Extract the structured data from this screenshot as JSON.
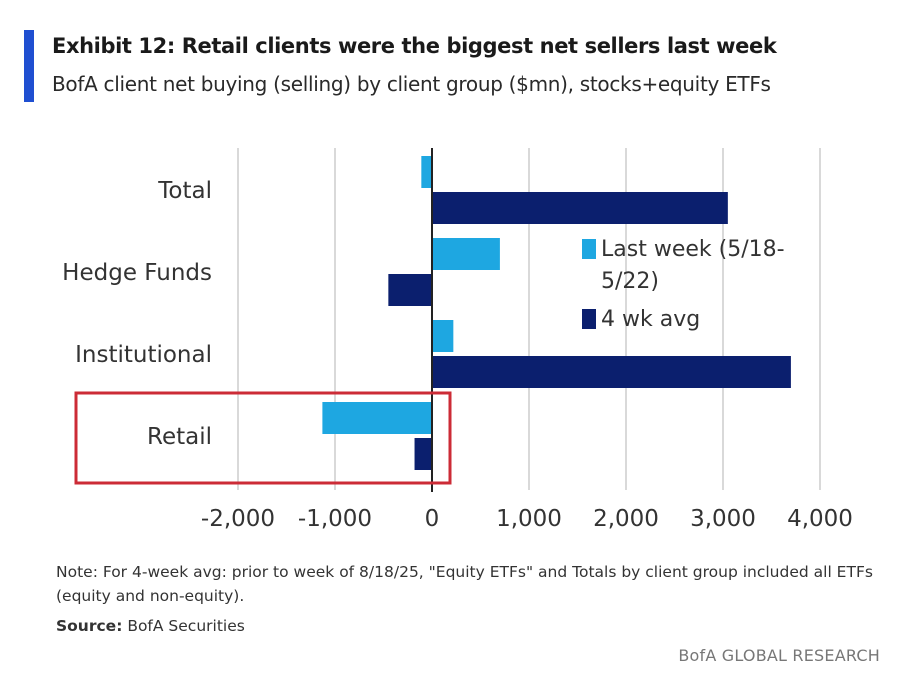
{
  "header": {
    "title": "Exhibit 12: Retail clients were the biggest net sellers last week",
    "subtitle": "BofA client net buying (selling) by client group ($mn), stocks+equity ETFs"
  },
  "footer": {
    "note": "Note: For 4-week avg: prior to week of 8/18/25, \"Equity ETFs\" and Totals by client group included all ETFs (equity and non-equity).",
    "source_label": "Source:",
    "source_text": " BofA Securities",
    "branding": "BofA GLOBAL RESEARCH"
  },
  "colors": {
    "last_week": "#1ea7e1",
    "four_wk_avg": "#0b1f6e",
    "accent": "#1f4fd1",
    "highlight_box": "#cc2b36",
    "grid": "#d9d9d9"
  },
  "chart_data": {
    "type": "bar",
    "orientation": "horizontal",
    "title": "Exhibit 12: Retail clients were the biggest net sellers last week",
    "subtitle": "BofA client net buying (selling) by client group ($mn), stocks+equity ETFs",
    "categories": [
      "Total",
      "Hedge Funds",
      "Institutional",
      "Retail"
    ],
    "series": [
      {
        "name": "Last week (5/18-5/22)",
        "legend_lines": [
          "Last week (5/18-",
          "5/22)"
        ],
        "values": [
          -110,
          700,
          220,
          -1130
        ]
      },
      {
        "name": "4 wk avg",
        "legend_lines": [
          "4 wk avg"
        ],
        "values": [
          3050,
          -450,
          3700,
          -180
        ]
      }
    ],
    "xlim": [
      -2000,
      4000
    ],
    "xticks": [
      -2000,
      -1000,
      0,
      1000,
      2000,
      3000,
      4000
    ],
    "xtick_labels": [
      "-2,000",
      "-1,000",
      "0",
      "1,000",
      "2,000",
      "3,000",
      "4,000"
    ],
    "grid": "vertical",
    "legend_position": "right, inside plot",
    "highlighted_category": "Retail"
  }
}
